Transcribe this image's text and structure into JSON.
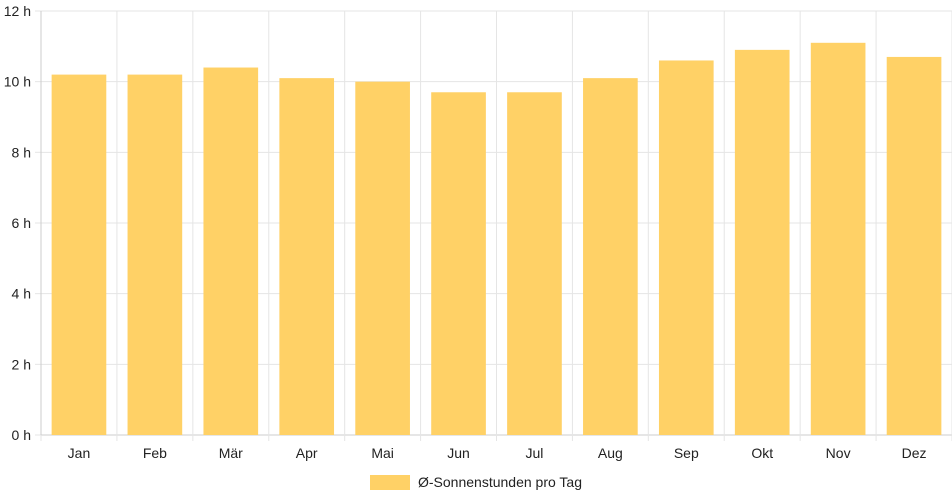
{
  "chart_data": {
    "type": "bar",
    "categories": [
      "Jan",
      "Feb",
      "Mär",
      "Apr",
      "Mai",
      "Jun",
      "Jul",
      "Aug",
      "Sep",
      "Okt",
      "Nov",
      "Dez"
    ],
    "series": [
      {
        "name": "Ø-Sonnenstunden pro Tag",
        "values": [
          10.2,
          10.2,
          10.4,
          10.1,
          10.0,
          9.7,
          9.7,
          10.1,
          10.6,
          10.9,
          11.1,
          10.7
        ]
      }
    ],
    "y_ticks": [
      "0 h",
      "2 h",
      "4 h",
      "6 h",
      "8 h",
      "10 h",
      "12 h"
    ],
    "ylim": [
      0,
      12
    ],
    "grid": true,
    "legend_position": "bottom",
    "colors": {
      "bar": "#ffd166",
      "grid": "#e5e5e5",
      "axis": "#cccccc",
      "text": "#222222"
    }
  }
}
